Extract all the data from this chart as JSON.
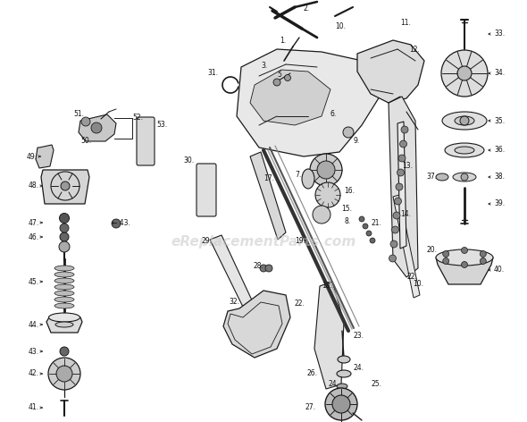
{
  "bg_color": "#ffffff",
  "watermark": "eReplacementParts.com",
  "watermark_color": "#c8c8c8",
  "watermark_alpha": 0.55,
  "fig_width": 5.9,
  "fig_height": 4.72,
  "dpi": 100,
  "line_color": "#1a1a1a",
  "text_color": "#111111",
  "fs": 5.5
}
